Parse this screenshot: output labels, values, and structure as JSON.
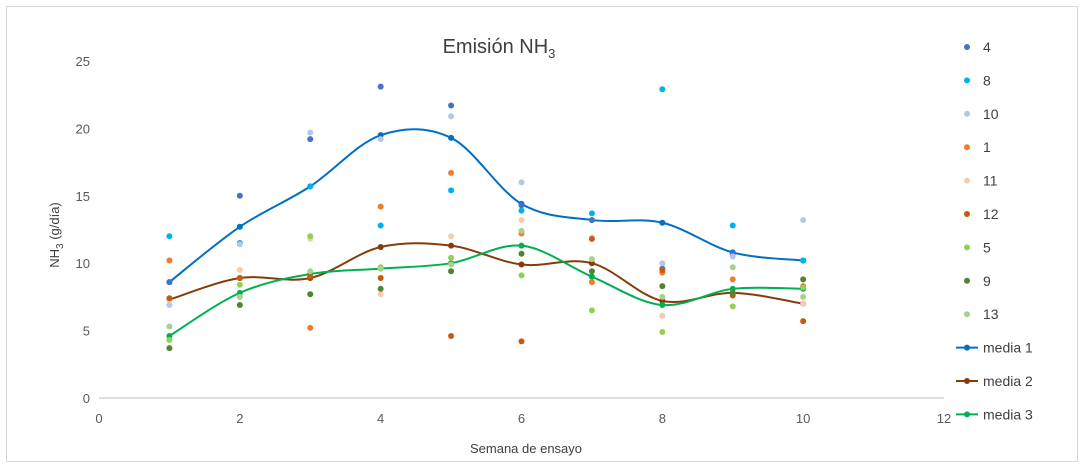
{
  "chart_data": {
    "type": "scatter",
    "title": "Emisión NH",
    "title_sub": "3",
    "xlabel": "Semana de ensayo",
    "ylabel_prefix": "NH",
    "ylabel_sub": "3",
    "ylabel_suffix": " (g/día)",
    "xlim": [
      0,
      12
    ],
    "ylim": [
      0,
      25
    ],
    "xticks": [
      "0",
      "2",
      "4",
      "6",
      "8",
      "10",
      "12"
    ],
    "yticks": [
      "0",
      "5",
      "10",
      "15",
      "20",
      "25"
    ],
    "grid": false,
    "legend_position": "right",
    "series": [
      {
        "name": "4",
        "color": "#4472C4",
        "kind": "points",
        "points": [
          [
            1,
            8.6
          ],
          [
            2,
            15.0
          ],
          [
            3,
            19.2
          ],
          [
            4,
            23.1
          ],
          [
            5,
            21.7
          ],
          [
            6,
            14.3
          ],
          [
            7,
            13.2
          ],
          [
            8,
            9.6
          ],
          [
            9,
            10.7
          ],
          [
            10,
            10.2
          ]
        ]
      },
      {
        "name": "8",
        "color": "#00B0F0",
        "kind": "points",
        "points": [
          [
            1,
            12.0
          ],
          [
            2,
            11.5
          ],
          [
            3,
            15.7
          ],
          [
            4,
            12.8
          ],
          [
            5,
            15.4
          ],
          [
            6,
            13.9
          ],
          [
            7,
            13.7
          ],
          [
            8,
            22.9
          ],
          [
            9,
            12.8
          ],
          [
            10,
            10.2
          ]
        ]
      },
      {
        "name": "10",
        "color": "#B4C7E7",
        "kind": "points",
        "points": [
          [
            1,
            6.9
          ],
          [
            2,
            11.4
          ],
          [
            3,
            19.7
          ],
          [
            4,
            19.2
          ],
          [
            5,
            20.9
          ],
          [
            6,
            16.0
          ],
          [
            7,
            11.9
          ],
          [
            8,
            10.0
          ],
          [
            9,
            10.5
          ],
          [
            10,
            13.2
          ]
        ]
      },
      {
        "name": "1",
        "color": "#ED7D31",
        "kind": "points",
        "points": [
          [
            1,
            10.2
          ],
          [
            2,
            8.9
          ],
          [
            3,
            5.2
          ],
          [
            4,
            14.2
          ],
          [
            5,
            16.7
          ],
          [
            6,
            12.2
          ],
          [
            7,
            8.6
          ],
          [
            8,
            9.3
          ],
          [
            9,
            8.8
          ],
          [
            10,
            8.3
          ]
        ]
      },
      {
        "name": "11",
        "color": "#F8CBAD",
        "kind": "points",
        "points": [
          [
            1,
            7.3
          ],
          [
            2,
            9.5
          ],
          [
            3,
            11.8
          ],
          [
            4,
            7.7
          ],
          [
            5,
            12.0
          ],
          [
            6,
            13.2
          ],
          [
            7,
            11.9
          ],
          [
            8,
            6.1
          ],
          [
            9,
            7.8
          ],
          [
            10,
            7.0
          ]
        ]
      },
      {
        "name": "12",
        "color": "#C55A11",
        "kind": "points",
        "points": [
          [
            1,
            7.4
          ],
          [
            2,
            8.9
          ],
          [
            3,
            9.0
          ],
          [
            4,
            8.9
          ],
          [
            5,
            4.6
          ],
          [
            6,
            4.2
          ],
          [
            7,
            11.8
          ],
          [
            8,
            9.5
          ],
          [
            9,
            7.6
          ],
          [
            10,
            5.7
          ]
        ]
      },
      {
        "name": "5",
        "color": "#92D050",
        "kind": "points",
        "points": [
          [
            1,
            4.3
          ],
          [
            2,
            8.4
          ],
          [
            3,
            12.0
          ],
          [
            4,
            9.7
          ],
          [
            5,
            10.4
          ],
          [
            6,
            9.1
          ],
          [
            7,
            6.5
          ],
          [
            8,
            4.9
          ],
          [
            9,
            6.8
          ],
          [
            10,
            8.2
          ]
        ]
      },
      {
        "name": "9",
        "color": "#548235",
        "kind": "points",
        "points": [
          [
            1,
            3.7
          ],
          [
            2,
            6.9
          ],
          [
            3,
            7.7
          ],
          [
            4,
            8.1
          ],
          [
            5,
            9.4
          ],
          [
            6,
            10.7
          ],
          [
            7,
            9.4
          ],
          [
            8,
            8.3
          ],
          [
            9,
            7.8
          ],
          [
            10,
            8.8
          ]
        ]
      },
      {
        "name": "13",
        "color": "#A9D18E",
        "kind": "points",
        "points": [
          [
            1,
            5.3
          ],
          [
            2,
            7.5
          ],
          [
            3,
            9.4
          ],
          [
            4,
            9.6
          ],
          [
            5,
            9.9
          ],
          [
            6,
            12.4
          ],
          [
            7,
            10.3
          ],
          [
            8,
            7.5
          ],
          [
            9,
            9.7
          ],
          [
            10,
            7.5
          ]
        ]
      },
      {
        "name": "media 1",
        "color": "#0070C0",
        "kind": "line",
        "points": [
          [
            1,
            8.6
          ],
          [
            2,
            12.7
          ],
          [
            3,
            15.7
          ],
          [
            4,
            19.5
          ],
          [
            5,
            19.3
          ],
          [
            6,
            14.4
          ],
          [
            7,
            13.2
          ],
          [
            8,
            13.0
          ],
          [
            9,
            10.8
          ],
          [
            10,
            10.2
          ]
        ]
      },
      {
        "name": "media 2",
        "color": "#843C0C",
        "kind": "line",
        "points": [
          [
            1,
            7.3
          ],
          [
            2,
            8.9
          ],
          [
            3,
            8.9
          ],
          [
            4,
            11.2
          ],
          [
            5,
            11.3
          ],
          [
            6,
            9.9
          ],
          [
            7,
            10.0
          ],
          [
            8,
            7.2
          ],
          [
            9,
            7.8
          ],
          [
            10,
            7.0
          ]
        ]
      },
      {
        "name": "media 3",
        "color": "#00B050",
        "kind": "line",
        "points": [
          [
            1,
            4.6
          ],
          [
            2,
            7.8
          ],
          [
            3,
            9.2
          ],
          [
            4,
            9.6
          ],
          [
            5,
            10.0
          ],
          [
            6,
            11.3
          ],
          [
            7,
            9.0
          ],
          [
            8,
            6.9
          ],
          [
            9,
            8.1
          ],
          [
            10,
            8.1
          ]
        ]
      }
    ]
  }
}
